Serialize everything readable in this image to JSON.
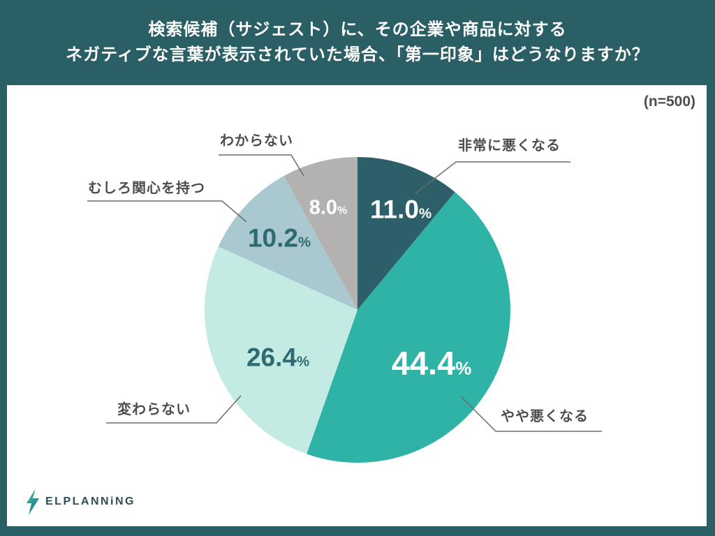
{
  "title": {
    "line1": "検索候補（サジェスト）に、その企業や商品に対する",
    "line2": "ネガティブな言葉が表示されていた場合、「第一印象」はどうなりますか？"
  },
  "sample_label": "(n=500)",
  "percent_sign": "%",
  "logo_text": "ELPLANNiNG",
  "colors": {
    "background": "#2b5f66",
    "card": "#ffffff",
    "title_text": "#ffffff",
    "category_label_text": "#4d4d4d",
    "leader_line": "#6b6b6b",
    "dark_value_text": "#2d6a72",
    "light_value_text": "#ffffff",
    "logo_text": "#2f4f58",
    "logo_bolt_top": "#3fc5ae",
    "logo_bolt_bottom": "#237680"
  },
  "chart_data": {
    "type": "pie",
    "title": "検索候補（サジェスト）に、その企業や商品に対するネガティブな言葉が表示されていた場合、「第一印象」はどうなりますか？",
    "sample_size": 500,
    "start_angle_deg": 0,
    "direction": "clockwise",
    "total": 100,
    "legend_position": "callout-labels",
    "slices": [
      {
        "label": "非常に悪くなる",
        "value_pct": 11.0,
        "value_label": "11.0",
        "color": "#2d5f69",
        "value_text_color": "#ffffff"
      },
      {
        "label": "やや悪くなる",
        "value_pct": 44.4,
        "value_label": "44.4",
        "color": "#2fb3a6",
        "value_text_color": "#ffffff"
      },
      {
        "label": "変わらない",
        "value_pct": 26.4,
        "value_label": "26.4",
        "color": "#c3eae3",
        "value_text_color": "#2d6a72"
      },
      {
        "label": "むしろ関心を持つ",
        "value_pct": 10.2,
        "value_label": "10.2",
        "color": "#a9c8d0",
        "value_text_color": "#2d6a72"
      },
      {
        "label": "わからない",
        "value_pct": 8.0,
        "value_label": "8.0",
        "color": "#b3b2b1",
        "value_text_color": "#ffffff"
      }
    ]
  }
}
